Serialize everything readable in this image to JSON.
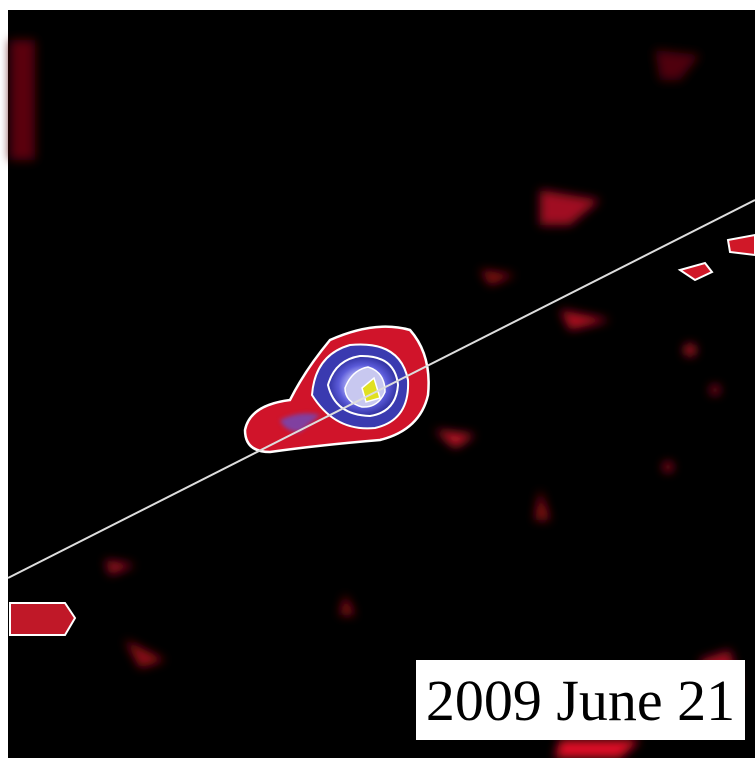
{
  "label": "2009 June 21"
}
